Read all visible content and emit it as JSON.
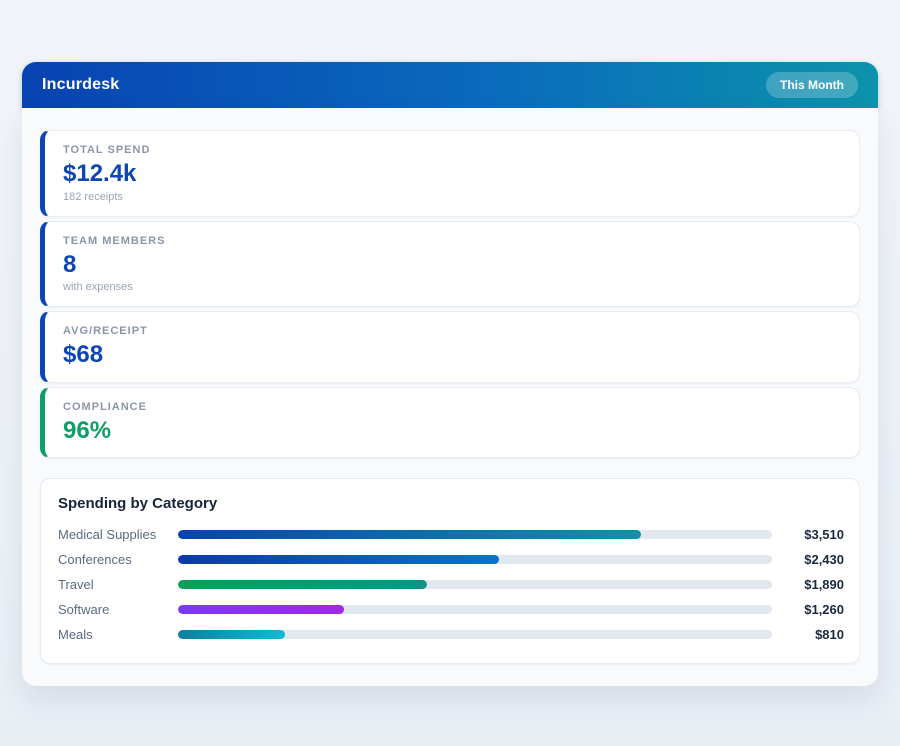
{
  "header": {
    "title": "Incurdesk",
    "badge": "This Month"
  },
  "theme": {
    "header_gradient": [
      "#0843b2",
      "#0c93aa"
    ],
    "page_background": "#edf1f7",
    "panel_background": "#f8fafc",
    "card_background": "#ffffff",
    "accent_blue": "#0d45b4",
    "accent_green": "#0f9d68",
    "bar_track": "#e2e8f0"
  },
  "stats": [
    {
      "label": "TOTAL SPEND",
      "value": "$12.4k",
      "sub": "182 receipts",
      "accent": "#0d45b4",
      "value_color": "#0d45b4"
    },
    {
      "label": "TEAM MEMBERS",
      "value": "8",
      "sub": "with expenses",
      "accent": "#0d45b4",
      "value_color": "#0d45b4"
    },
    {
      "label": "AVG/RECEIPT",
      "value": "$68",
      "sub": "",
      "accent": "#0d45b4",
      "value_color": "#0d45b4"
    },
    {
      "label": "COMPLIANCE",
      "value": "96%",
      "sub": "",
      "accent": "#0f9d68",
      "value_color": "#0f9d68"
    }
  ],
  "chart_data": {
    "type": "bar",
    "orientation": "horizontal",
    "title": "Spending by Category",
    "categories": [
      "Medical Supplies",
      "Conferences",
      "Travel",
      "Software",
      "Meals"
    ],
    "values": [
      3510,
      2430,
      1890,
      1260,
      810
    ],
    "value_labels": [
      "$3,510",
      "$2,430",
      "$1,890",
      "$1,260",
      "$810"
    ],
    "percent_of_scale": [
      78,
      54,
      42,
      28,
      18
    ],
    "xlim": [
      0,
      4500
    ],
    "grid": false,
    "legend": "none",
    "bar_gradients": [
      [
        "#0a42b2",
        "#0b93a8"
      ],
      [
        "#0c3aa8",
        "#0b70d6"
      ],
      [
        "#0f9d58",
        "#0e9488"
      ],
      [
        "#7c3aed",
        "#a228e0"
      ],
      [
        "#0e7fa0",
        "#0abcd6"
      ]
    ]
  }
}
